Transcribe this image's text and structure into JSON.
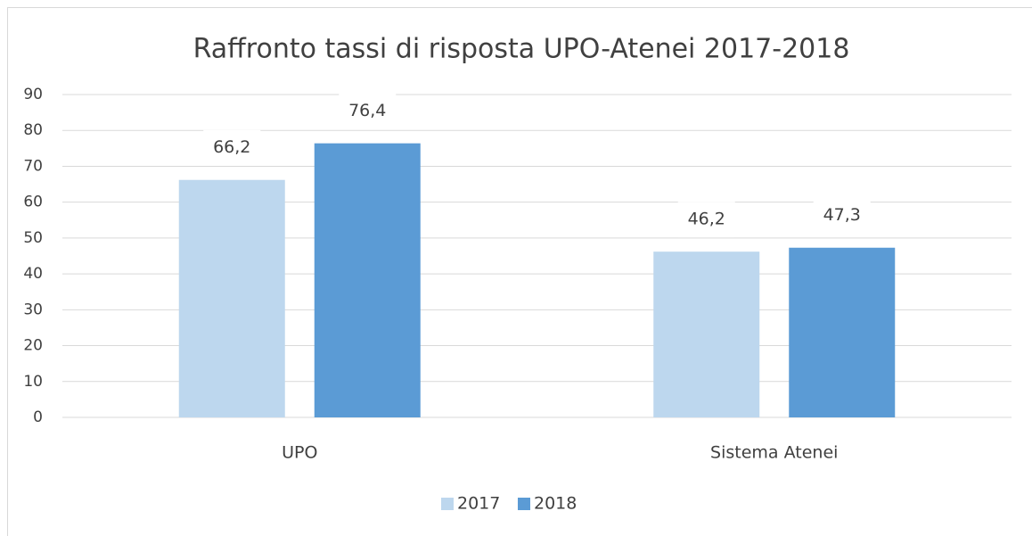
{
  "chart_data": {
    "type": "bar",
    "title": "Raffronto tassi di risposta UPO-Atenei 2017-2018",
    "categories": [
      "UPO",
      "Sistema Atenei"
    ],
    "series": [
      {
        "name": "2017",
        "color": "#bdd7ee",
        "values": [
          66.2,
          46.2
        ],
        "value_labels": [
          "66,2",
          "46,2"
        ]
      },
      {
        "name": "2018",
        "color": "#5b9bd5",
        "values": [
          76.4,
          47.3
        ],
        "value_labels": [
          "76,4",
          "47,3"
        ]
      }
    ],
    "ylim": [
      0,
      90
    ],
    "yticks": [
      0,
      10,
      20,
      30,
      40,
      50,
      60,
      70,
      80,
      90
    ],
    "grid": true,
    "legend": "bottom"
  }
}
